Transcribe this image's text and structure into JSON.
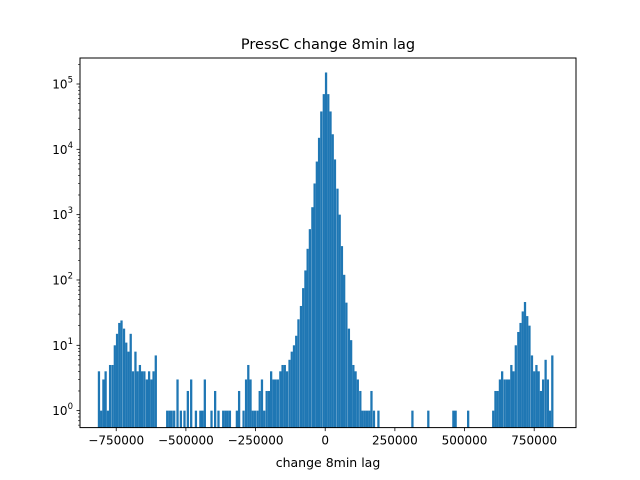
{
  "chart_data": {
    "type": "bar",
    "title": "PressC change 8min lag",
    "xlabel": "change 8min lag",
    "ylabel": "",
    "yscale": "log",
    "xlim": [
      -880000,
      900000
    ],
    "ylim": [
      0.55,
      250000
    ],
    "xticks": [
      {
        "value": -750000,
        "label": "−750000"
      },
      {
        "value": -500000,
        "label": "−500000"
      },
      {
        "value": -250000,
        "label": "−250000"
      },
      {
        "value": 0,
        "label": "0"
      },
      {
        "value": 250000,
        "label": "250000"
      },
      {
        "value": 500000,
        "label": "500000"
      },
      {
        "value": 750000,
        "label": "750000"
      }
    ],
    "yticks": [
      {
        "value": 1,
        "base": "10",
        "exp": "0"
      },
      {
        "value": 10,
        "base": "10",
        "exp": "1"
      },
      {
        "value": 100,
        "base": "10",
        "exp": "2"
      },
      {
        "value": 1000,
        "base": "10",
        "exp": "3"
      },
      {
        "value": 10000,
        "base": "10",
        "exp": "4"
      },
      {
        "value": 100000,
        "base": "10",
        "exp": "5"
      }
    ],
    "bar_color": "#1f77b4",
    "bin_width": 8200,
    "bins": [
      {
        "x": -812000,
        "count": 4
      },
      {
        "x": -804000,
        "count": 1
      },
      {
        "x": -796000,
        "count": 3
      },
      {
        "x": -788000,
        "count": 4
      },
      {
        "x": -780000,
        "count": 1
      },
      {
        "x": -772000,
        "count": 5
      },
      {
        "x": -763000,
        "count": 5
      },
      {
        "x": -755000,
        "count": 10
      },
      {
        "x": -747000,
        "count": 15
      },
      {
        "x": -739000,
        "count": 22
      },
      {
        "x": -731000,
        "count": 24
      },
      {
        "x": -722000,
        "count": 18
      },
      {
        "x": -714000,
        "count": 11
      },
      {
        "x": -706000,
        "count": 8
      },
      {
        "x": -698000,
        "count": 15
      },
      {
        "x": -690000,
        "count": 4
      },
      {
        "x": -681000,
        "count": 8
      },
      {
        "x": -673000,
        "count": 4
      },
      {
        "x": -665000,
        "count": 5
      },
      {
        "x": -657000,
        "count": 4
      },
      {
        "x": -649000,
        "count": 4
      },
      {
        "x": -640000,
        "count": 3
      },
      {
        "x": -632000,
        "count": 4
      },
      {
        "x": -624000,
        "count": 3
      },
      {
        "x": -616000,
        "count": 4
      },
      {
        "x": -608000,
        "count": 7
      },
      {
        "x": -567000,
        "count": 1
      },
      {
        "x": -559000,
        "count": 1
      },
      {
        "x": -551000,
        "count": 1
      },
      {
        "x": -542000,
        "count": 1
      },
      {
        "x": -530000,
        "count": 3
      },
      {
        "x": -518000,
        "count": 1
      },
      {
        "x": -505000,
        "count": 1
      },
      {
        "x": -493000,
        "count": 2
      },
      {
        "x": -481000,
        "count": 3
      },
      {
        "x": -464000,
        "count": 1
      },
      {
        "x": -448000,
        "count": 1
      },
      {
        "x": -440000,
        "count": 1
      },
      {
        "x": -432000,
        "count": 3
      },
      {
        "x": -408000,
        "count": 1
      },
      {
        "x": -395000,
        "count": 2
      },
      {
        "x": -383000,
        "count": 1
      },
      {
        "x": -366000,
        "count": 1
      },
      {
        "x": -358000,
        "count": 1
      },
      {
        "x": -350000,
        "count": 1
      },
      {
        "x": -342000,
        "count": 1
      },
      {
        "x": -317000,
        "count": 1
      },
      {
        "x": -309000,
        "count": 2
      },
      {
        "x": -293000,
        "count": 1
      },
      {
        "x": -284000,
        "count": 3
      },
      {
        "x": -276000,
        "count": 5
      },
      {
        "x": -268000,
        "count": 3
      },
      {
        "x": -260000,
        "count": 1
      },
      {
        "x": -252000,
        "count": 1
      },
      {
        "x": -243000,
        "count": 1
      },
      {
        "x": -235000,
        "count": 2
      },
      {
        "x": -227000,
        "count": 3
      },
      {
        "x": -219000,
        "count": 1
      },
      {
        "x": -210000,
        "count": 2
      },
      {
        "x": -202000,
        "count": 2
      },
      {
        "x": -194000,
        "count": 4
      },
      {
        "x": -186000,
        "count": 3
      },
      {
        "x": -178000,
        "count": 3
      },
      {
        "x": -170000,
        "count": 3
      },
      {
        "x": -161000,
        "count": 4
      },
      {
        "x": -153000,
        "count": 5
      },
      {
        "x": -145000,
        "count": 5
      },
      {
        "x": -137000,
        "count": 4
      },
      {
        "x": -128000,
        "count": 6
      },
      {
        "x": -120000,
        "count": 8
      },
      {
        "x": -112000,
        "count": 10
      },
      {
        "x": -104000,
        "count": 14
      },
      {
        "x": -96000,
        "count": 25
      },
      {
        "x": -87000,
        "count": 40
      },
      {
        "x": -79000,
        "count": 75
      },
      {
        "x": -71000,
        "count": 140
      },
      {
        "x": -63000,
        "count": 300
      },
      {
        "x": -55000,
        "count": 600
      },
      {
        "x": -46000,
        "count": 1300
      },
      {
        "x": -38000,
        "count": 3000
      },
      {
        "x": -30000,
        "count": 6500
      },
      {
        "x": -22000,
        "count": 15000
      },
      {
        "x": -14000,
        "count": 38000
      },
      {
        "x": -5000,
        "count": 70000
      },
      {
        "x": 3000,
        "count": 150000
      },
      {
        "x": 11000,
        "count": 70000
      },
      {
        "x": 19000,
        "count": 38000
      },
      {
        "x": 27000,
        "count": 17000
      },
      {
        "x": 35000,
        "count": 7000
      },
      {
        "x": 44000,
        "count": 2500
      },
      {
        "x": 52000,
        "count": 1000
      },
      {
        "x": 60000,
        "count": 330
      },
      {
        "x": 68000,
        "count": 120
      },
      {
        "x": 76000,
        "count": 45
      },
      {
        "x": 85000,
        "count": 18
      },
      {
        "x": 93000,
        "count": 12
      },
      {
        "x": 101000,
        "count": 5
      },
      {
        "x": 109000,
        "count": 4
      },
      {
        "x": 117000,
        "count": 3
      },
      {
        "x": 126000,
        "count": 2
      },
      {
        "x": 134000,
        "count": 1
      },
      {
        "x": 142000,
        "count": 1
      },
      {
        "x": 150000,
        "count": 1
      },
      {
        "x": 158000,
        "count": 1
      },
      {
        "x": 166000,
        "count": 2
      },
      {
        "x": 175000,
        "count": 1
      },
      {
        "x": 191000,
        "count": 1
      },
      {
        "x": 313000,
        "count": 1
      },
      {
        "x": 370000,
        "count": 1
      },
      {
        "x": 460000,
        "count": 1
      },
      {
        "x": 468000,
        "count": 1
      },
      {
        "x": 513000,
        "count": 1
      },
      {
        "x": 603000,
        "count": 1
      },
      {
        "x": 611000,
        "count": 2
      },
      {
        "x": 619000,
        "count": 2
      },
      {
        "x": 627000,
        "count": 3
      },
      {
        "x": 635000,
        "count": 4
      },
      {
        "x": 644000,
        "count": 3
      },
      {
        "x": 652000,
        "count": 3
      },
      {
        "x": 660000,
        "count": 3
      },
      {
        "x": 668000,
        "count": 5
      },
      {
        "x": 676000,
        "count": 4
      },
      {
        "x": 684000,
        "count": 10
      },
      {
        "x": 693000,
        "count": 16
      },
      {
        "x": 701000,
        "count": 22
      },
      {
        "x": 709000,
        "count": 33
      },
      {
        "x": 717000,
        "count": 46
      },
      {
        "x": 725000,
        "count": 28
      },
      {
        "x": 733000,
        "count": 20
      },
      {
        "x": 742000,
        "count": 7
      },
      {
        "x": 750000,
        "count": 4
      },
      {
        "x": 758000,
        "count": 5
      },
      {
        "x": 766000,
        "count": 4
      },
      {
        "x": 774000,
        "count": 2
      },
      {
        "x": 782000,
        "count": 3
      },
      {
        "x": 791000,
        "count": 6
      },
      {
        "x": 799000,
        "count": 3
      },
      {
        "x": 807000,
        "count": 1
      },
      {
        "x": 815000,
        "count": 7
      }
    ]
  }
}
